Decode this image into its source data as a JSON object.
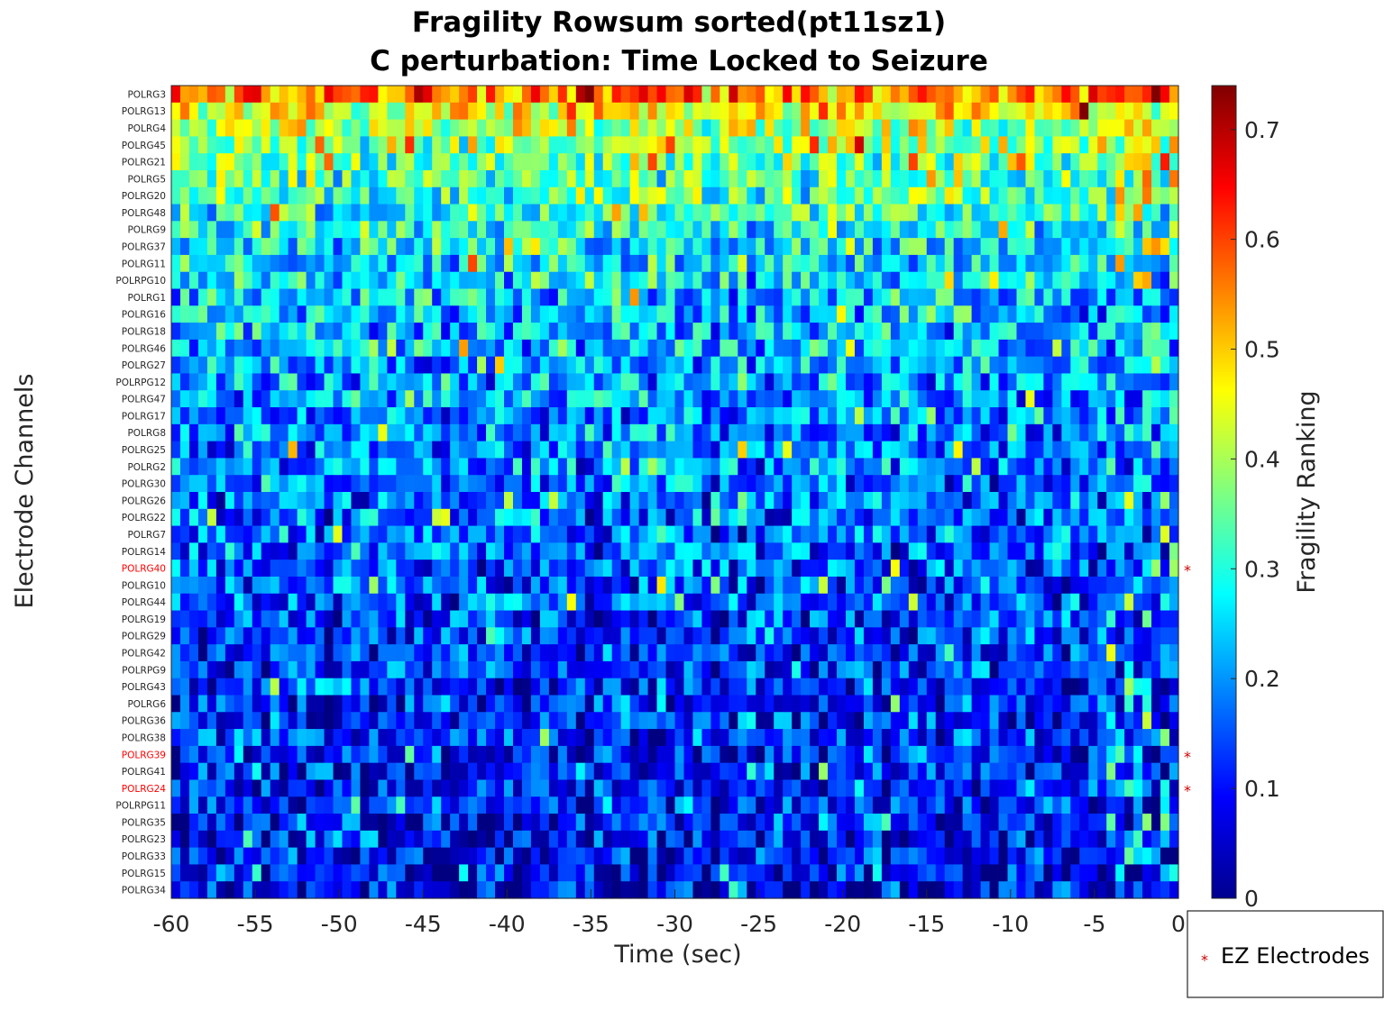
{
  "chart_data": {
    "type": "heatmap",
    "title": [
      "Fragility Rowsum sorted(pt11sz1)",
      "C perturbation:  Time Locked to Seizure"
    ],
    "xlabel": "Time (sec)",
    "ylabel": "Electrode Channels",
    "xlim": [
      -60,
      0
    ],
    "x_ticks": [
      "-60",
      "-55",
      "-50",
      "-45",
      "-40",
      "-35",
      "-30",
      "-25",
      "-20",
      "-15",
      "-10",
      "-5",
      "0"
    ],
    "channels": [
      "POLRG3",
      "POLRG13",
      "POLRG4",
      "POLRG45",
      "POLRG21",
      "POLRG5",
      "POLRG20",
      "POLRG48",
      "POLRG9",
      "POLRG37",
      "POLRG11",
      "POLRPG10",
      "POLRG1",
      "POLRG16",
      "POLRG18",
      "POLRG46",
      "POLRG27",
      "POLRPG12",
      "POLRG47",
      "POLRG17",
      "POLRG8",
      "POLRG25",
      "POLRG2",
      "POLRG30",
      "POLRG26",
      "POLRG22",
      "POLRG7",
      "POLRG14",
      "POLRG40",
      "POLRG10",
      "POLRG44",
      "POLRG19",
      "POLRG29",
      "POLRG42",
      "POLRPG9",
      "POLRG43",
      "POLRG6",
      "POLRG36",
      "POLRG38",
      "POLRG39",
      "POLRG41",
      "POLRG24",
      "POLRPG11",
      "POLRG35",
      "POLRG23",
      "POLRG33",
      "POLRG15",
      "POLRG34"
    ],
    "row_mean_fragility": [
      0.55,
      0.46,
      0.41,
      0.38,
      0.36,
      0.34,
      0.32,
      0.3,
      0.29,
      0.27,
      0.26,
      0.25,
      0.24,
      0.23,
      0.225,
      0.22,
      0.21,
      0.205,
      0.2,
      0.195,
      0.19,
      0.185,
      0.18,
      0.175,
      0.17,
      0.165,
      0.16,
      0.155,
      0.15,
      0.145,
      0.14,
      0.138,
      0.135,
      0.132,
      0.13,
      0.127,
      0.124,
      0.12,
      0.117,
      0.113,
      0.11,
      0.107,
      0.104,
      0.1,
      0.095,
      0.09,
      0.085,
      0.08
    ],
    "time_bins": 112,
    "ez_electrodes": [
      "POLRG40",
      "POLRG39",
      "POLRG24"
    ],
    "ez_marker_color": "#cc0000",
    "colorbar": {
      "label": "Fragility Ranking",
      "range": [
        0,
        0.74
      ],
      "ticks": [
        "0",
        "0.1",
        "0.2",
        "0.3",
        "0.4",
        "0.5",
        "0.6",
        "0.7"
      ],
      "colormap": "jet"
    },
    "legend": {
      "label": "EZ Electrodes",
      "marker": "*",
      "placement": "bottom-right"
    }
  }
}
